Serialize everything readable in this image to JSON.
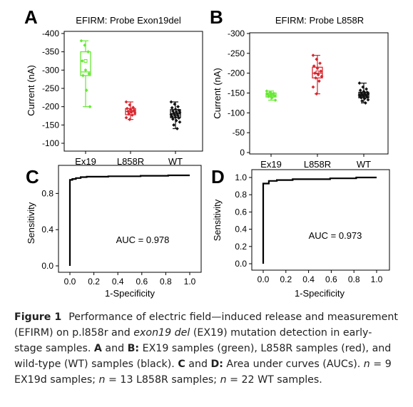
{
  "panels": {
    "A": {
      "letter": "A",
      "title": "EFIRM: Probe Exon19del",
      "ylabel": "Current (nA)",
      "yticks": [
        "-400",
        "-350",
        "-300",
        "-250",
        "-200",
        "-150",
        "-100"
      ],
      "categories": [
        "Ex19",
        "L858R",
        "WT"
      ]
    },
    "B": {
      "letter": "B",
      "title": "EFIRM: Probe L858R",
      "ylabel": "Current (nA)",
      "yticks": [
        "-300",
        "-250",
        "-200",
        "-150",
        "-100",
        "-50",
        "0"
      ],
      "categories": [
        "Ex19",
        "L858R",
        "WT"
      ]
    },
    "C": {
      "letter": "C",
      "ylabel": "Sensitivity",
      "xlabel": "1-Specificity",
      "xticks": [
        "0.0",
        "0.2",
        "0.4",
        "0.6",
        "0.8",
        "1.0"
      ],
      "yticks": [
        "0.0",
        "0.4",
        "0.8"
      ],
      "auc_label": "AUC = 0.978"
    },
    "D": {
      "letter": "D",
      "ylabel": "Sensitivity",
      "xlabel": "1-Specificity",
      "xticks": [
        "0.0",
        "0.2",
        "0.4",
        "0.6",
        "0.8",
        "1.0"
      ],
      "yticks": [
        "0.0",
        "0.2",
        "0.4",
        "0.6",
        "0.8",
        "1.0"
      ],
      "auc_label": "AUC = 0.973"
    }
  },
  "colors": {
    "ex19": "#66e833",
    "l858r": "#d9262e",
    "wt": "#111111"
  },
  "chart_data": [
    {
      "type": "box",
      "panel": "A",
      "title": "EFIRM: Probe Exon19del",
      "ylabel": "Current (nA)",
      "ylim": [
        -400,
        -90
      ],
      "categories": [
        "Ex19",
        "L858R",
        "WT"
      ],
      "boxes": [
        {
          "name": "Ex19",
          "whisker_low": -380,
          "q1": -350,
          "median": -295,
          "q3": -285,
          "whisker_high": -200,
          "mean": -325,
          "points": [
            -380,
            -368,
            -350,
            -325,
            -300,
            -290,
            -285,
            -245,
            -200
          ]
        },
        {
          "name": "L858R",
          "whisker_low": -213,
          "q1": -195,
          "median": -187,
          "q3": -178,
          "whisker_high": -165,
          "mean": -187,
          "points": [
            -213,
            -205,
            -198,
            -195,
            -192,
            -190,
            -187,
            -185,
            -183,
            -180,
            -177,
            -170,
            -165
          ]
        },
        {
          "name": "WT",
          "whisker_low": -213,
          "q1": -192,
          "median": -180,
          "q3": -170,
          "whisker_high": -140,
          "mean": -180,
          "points": [
            -213,
            -207,
            -200,
            -197,
            -193,
            -190,
            -188,
            -186,
            -184,
            -182,
            -181,
            -179,
            -177,
            -175,
            -173,
            -171,
            -169,
            -166,
            -162,
            -158,
            -150,
            -140
          ]
        }
      ]
    },
    {
      "type": "box",
      "panel": "B",
      "title": "EFIRM: Probe L858R",
      "ylabel": "Current (nA)",
      "ylim": [
        -300,
        0
      ],
      "categories": [
        "Ex19",
        "L858R",
        "WT"
      ],
      "boxes": [
        {
          "name": "Ex19",
          "whisker_low": -155,
          "q1": -150,
          "median": -145,
          "q3": -140,
          "whisker_high": -132,
          "mean": -145,
          "points": [
            -155,
            -152,
            -149,
            -147,
            -145,
            -143,
            -141,
            -138,
            -132
          ]
        },
        {
          "name": "L858R",
          "whisker_low": -245,
          "q1": -215,
          "median": -200,
          "q3": -188,
          "whisker_high": -148,
          "mean": -202,
          "points": [
            -245,
            -235,
            -225,
            -218,
            -212,
            -205,
            -200,
            -196,
            -192,
            -188,
            -180,
            -165,
            -148
          ]
        },
        {
          "name": "WT",
          "whisker_low": -175,
          "q1": -152,
          "median": -145,
          "q3": -138,
          "whisker_high": -125,
          "mean": -145,
          "points": [
            -175,
            -165,
            -160,
            -157,
            -154,
            -152,
            -150,
            -149,
            -148,
            -147,
            -146,
            -145,
            -144,
            -143,
            -142,
            -141,
            -140,
            -138,
            -136,
            -133,
            -130,
            -125
          ]
        }
      ]
    },
    {
      "type": "line",
      "panel": "C",
      "xlabel": "1-Specificity",
      "ylabel": "Sensitivity",
      "xlim": [
        0,
        1
      ],
      "ylim": [
        0,
        1
      ],
      "x": [
        0.0,
        0.0,
        0.02,
        0.02,
        0.05,
        0.05,
        0.09,
        0.09,
        0.14,
        0.14,
        0.32,
        0.32,
        0.59,
        0.59,
        0.82,
        0.82,
        1.0
      ],
      "y": [
        0.0,
        0.95,
        0.95,
        0.96,
        0.96,
        0.97,
        0.97,
        0.98,
        0.98,
        0.985,
        0.985,
        0.99,
        0.99,
        0.995,
        0.995,
        1.0,
        1.0
      ],
      "annotation": "AUC = 0.978"
    },
    {
      "type": "line",
      "panel": "D",
      "xlabel": "1-Specificity",
      "ylabel": "Sensitivity",
      "xlim": [
        0,
        1
      ],
      "ylim": [
        0,
        1
      ],
      "x": [
        0.0,
        0.0,
        0.05,
        0.05,
        0.12,
        0.12,
        0.26,
        0.26,
        0.59,
        0.59,
        0.82,
        0.82,
        1.0
      ],
      "y": [
        0.0,
        0.93,
        0.93,
        0.96,
        0.96,
        0.97,
        0.97,
        0.98,
        0.98,
        0.99,
        0.99,
        1.0,
        1.0
      ],
      "annotation": "AUC = 0.973"
    }
  ],
  "caption": {
    "fig": "Figure 1",
    "s1": "Performance of electric field—induced release and measurement (EFIRM) on p.l858r and ",
    "s1_em": "exon19 del",
    "s2": " (EX19) mutation detection in early-stage samples. ",
    "s2_b1": "A",
    "s3": " and ",
    "s3_b2": "B:",
    "s4": " EX19 samples (green), L858R samples (red), and wild-type (WT) samples (black). ",
    "s4_b3": "C",
    "s5": " and ",
    "s5_b4": "D:",
    "s6": " Area under curves (AUCs). ",
    "s6_n1": "n",
    "s7": " = 9 EX19d samples; ",
    "s7_n2": "n",
    "s8": " = 13 L858R samples; ",
    "s8_n3": "n",
    "s9": " = 22 WT samples."
  }
}
